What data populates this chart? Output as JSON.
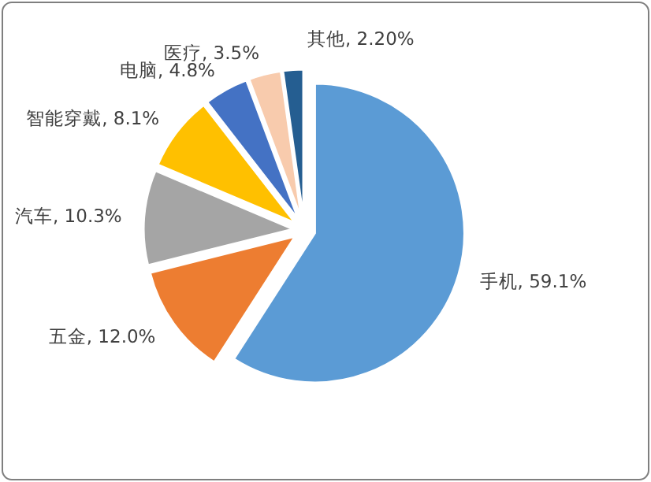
{
  "chart_data": {
    "type": "pie",
    "categories": [
      "手机",
      "五金",
      "汽车",
      "智能穿戴",
      "电脑",
      "医疗",
      "其他"
    ],
    "values": [
      59.1,
      12.0,
      10.3,
      8.1,
      4.8,
      3.5,
      2.2
    ],
    "value_labels": [
      "59.1%",
      "12.0%",
      "10.3%",
      "8.1%",
      "4.8%",
      "3.5%",
      "2.20%"
    ],
    "colors": [
      "#5b9bd5",
      "#ed7d31",
      "#a5a5a5",
      "#ffc000",
      "#4472c4",
      "#f8cbad",
      "#255e91"
    ]
  }
}
